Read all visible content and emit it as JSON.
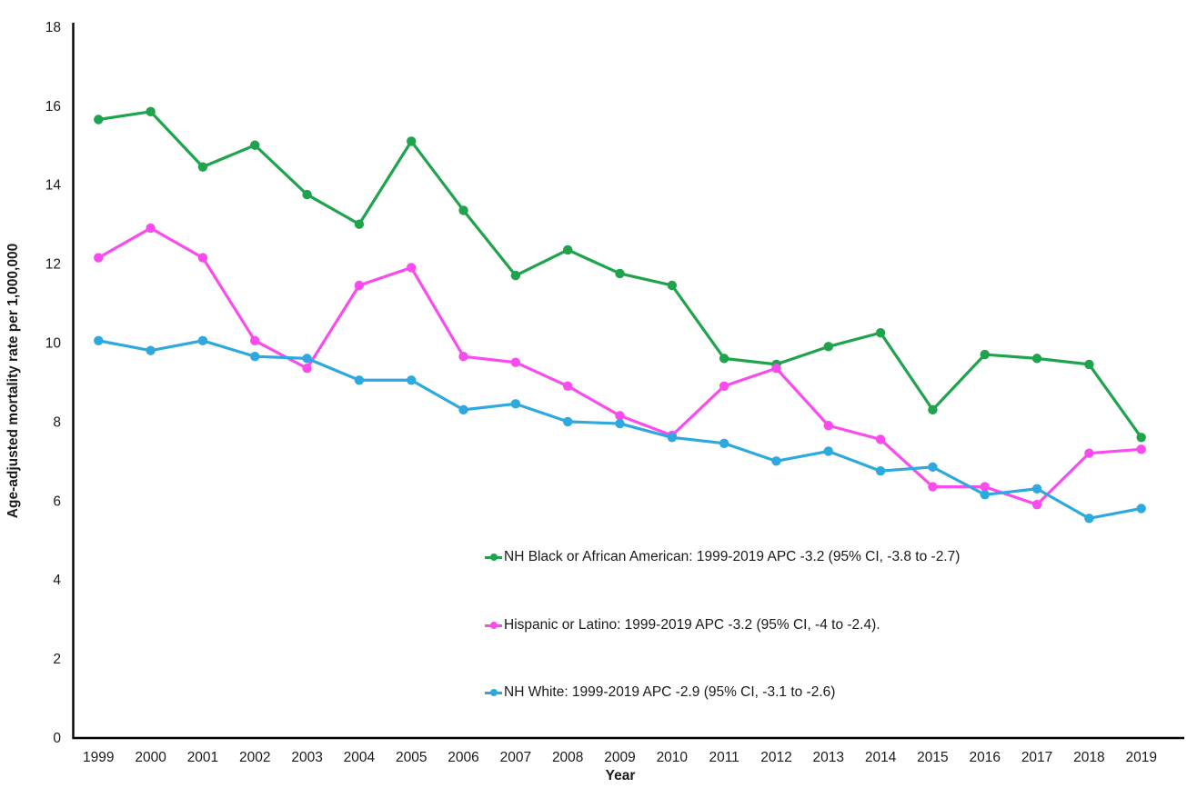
{
  "chart_data": {
    "type": "line",
    "title": "",
    "xlabel": "Year",
    "ylabel": "Age-adjusted mortality rate per 1,000,000",
    "x": [
      1999,
      2000,
      2001,
      2002,
      2003,
      2004,
      2005,
      2006,
      2007,
      2008,
      2009,
      2010,
      2011,
      2012,
      2013,
      2014,
      2015,
      2016,
      2017,
      2018,
      2019
    ],
    "ylim": [
      0,
      18
    ],
    "yticks": [
      0,
      2,
      4,
      6,
      8,
      10,
      12,
      14,
      16,
      18
    ],
    "grid": false,
    "legend_position": "inside-bottom-center, stacked vertically",
    "marker": "circle",
    "series": [
      {
        "name": "NH Black or African American",
        "slug": "nh-black-or-african-american",
        "color": "#1FA34C",
        "legend_label": "NH Black or African American: 1999-2019 APC -3.2 (95% CI, -3.8 to -2.7)",
        "values": [
          15.65,
          15.85,
          14.45,
          15.0,
          13.75,
          13.0,
          15.1,
          13.35,
          11.7,
          12.35,
          11.75,
          11.45,
          9.6,
          9.45,
          9.9,
          10.25,
          8.3,
          9.7,
          9.6,
          9.45,
          7.6
        ]
      },
      {
        "name": "Hispanic or Latino",
        "slug": "hispanic-or-latino",
        "color": "#FA4BEE",
        "legend_label": "Hispanic or Latino: 1999-2019 APC -3.2 (95% CI, -4 to -2.4).",
        "values": [
          12.15,
          12.9,
          12.15,
          10.05,
          9.35,
          11.45,
          11.9,
          9.65,
          9.5,
          8.9,
          8.15,
          7.65,
          8.9,
          9.35,
          7.9,
          7.55,
          6.35,
          6.35,
          5.9,
          7.2,
          7.3
        ]
      },
      {
        "name": "NH White",
        "slug": "nh-white",
        "color": "#2EA9E0",
        "legend_label": "NH White: 1999-2019 APC -2.9 (95% CI, -3.1 to -2.6)",
        "values": [
          10.05,
          9.8,
          10.05,
          9.65,
          9.6,
          9.05,
          9.05,
          8.3,
          8.45,
          8.0,
          7.95,
          7.6,
          7.45,
          7.0,
          7.25,
          6.75,
          6.85,
          6.15,
          6.3,
          5.55,
          5.8
        ]
      }
    ]
  }
}
